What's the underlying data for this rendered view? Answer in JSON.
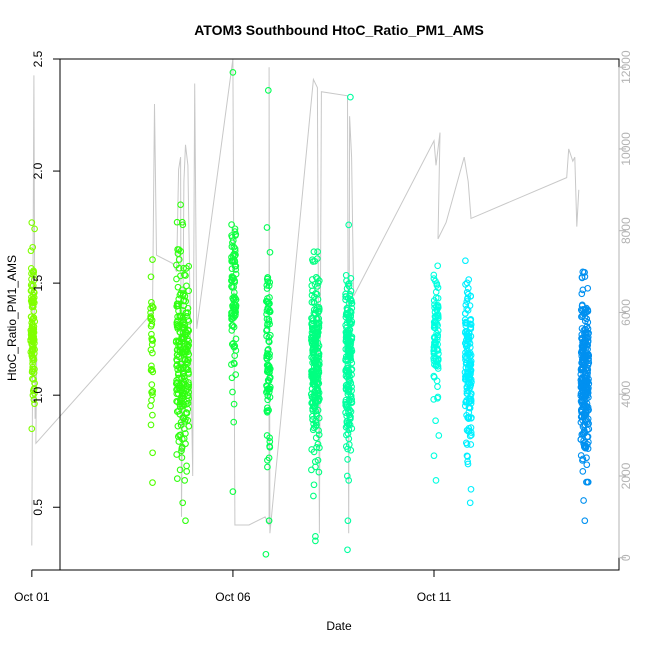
{
  "chart_data": {
    "type": "scatter",
    "title": "ATOM3 Southbound HtoC_Ratio_PM1_AMS",
    "xlabel": "Date",
    "ylabel": "HtoC_Ratio_PM1_AMS",
    "x_ticks": [
      "Oct 01",
      "Oct 06",
      "Oct 11"
    ],
    "y_ticks": [
      "0.5",
      "1.0",
      "1.5",
      "2.0",
      "2.5"
    ],
    "y2_ticks": [
      "0",
      "2000",
      "4000",
      "6000",
      "8000",
      "10000",
      "12000"
    ],
    "xlim_days": [
      0.7,
      14.6
    ],
    "ylim": [
      0.22,
      2.5
    ],
    "y2lim": [
      -300,
      12200
    ],
    "x_origin_label": "Oct 01",
    "clusters": [
      {
        "day": 0.02,
        "color": "#80ff00",
        "mean": 1.3,
        "sd": 0.17,
        "n": 110,
        "width": 0.05,
        "outliers": [
          [
            0.0,
            1.77
          ],
          [
            0.0,
            0.85
          ],
          [
            0.05,
            0.98
          ],
          [
            0.02,
            1.66
          ]
        ]
      },
      {
        "day": 2.98,
        "color": "#50ff00",
        "mean": 1.18,
        "sd": 0.18,
        "n": 35,
        "width": 0.03,
        "outliers": [
          [
            3.0,
            0.61
          ],
          [
            3.02,
            1.39
          ]
        ]
      },
      {
        "day": 3.75,
        "color": "#30ff10",
        "mean": 1.2,
        "sd": 0.22,
        "n": 230,
        "width": 0.16,
        "outliers": [
          [
            3.7,
            1.85
          ],
          [
            3.82,
            0.44
          ],
          [
            3.75,
            0.52
          ],
          [
            3.8,
            0.62
          ],
          [
            3.85,
            0.66
          ]
        ]
      },
      {
        "day": 5.02,
        "color": "#10ff40",
        "mean": 1.43,
        "sd": 0.16,
        "n": 90,
        "width": 0.06,
        "outliers": [
          [
            5.0,
            2.44
          ],
          [
            5.05,
            1.73
          ],
          [
            5.0,
            0.57
          ],
          [
            5.02,
            0.88
          ],
          [
            5.03,
            0.96
          ]
        ]
      },
      {
        "day": 5.88,
        "color": "#00ff55",
        "mean": 1.15,
        "sd": 0.23,
        "n": 90,
        "width": 0.05,
        "outliers": [
          [
            5.88,
            2.36
          ],
          [
            5.82,
            0.29
          ],
          [
            5.9,
            0.44
          ],
          [
            5.85,
            0.82
          ],
          [
            5.9,
            0.72
          ]
        ]
      },
      {
        "day": 7.05,
        "color": "#00ff80",
        "mean": 1.12,
        "sd": 0.2,
        "n": 240,
        "width": 0.1,
        "outliers": [
          [
            7.05,
            0.37
          ],
          [
            7.05,
            0.35
          ],
          [
            7.0,
            0.55
          ],
          [
            7.1,
            1.52
          ],
          [
            7.05,
            0.68
          ]
        ]
      },
      {
        "day": 7.88,
        "color": "#00ffa0",
        "mean": 1.16,
        "sd": 0.21,
        "n": 190,
        "width": 0.08,
        "outliers": [
          [
            7.92,
            2.33
          ],
          [
            7.88,
            1.76
          ],
          [
            7.85,
            0.31
          ],
          [
            7.86,
            0.44
          ],
          [
            7.88,
            0.62
          ]
        ]
      },
      {
        "day": 10.05,
        "color": "#00ffe0",
        "mean": 1.25,
        "sd": 0.14,
        "n": 90,
        "width": 0.06,
        "outliers": [
          [
            10.1,
            1.48
          ],
          [
            10.05,
            0.62
          ],
          [
            10.12,
            0.82
          ],
          [
            10.0,
            0.73
          ]
        ]
      },
      {
        "day": 10.85,
        "color": "#00f0ff",
        "mean": 1.13,
        "sd": 0.18,
        "n": 160,
        "width": 0.08,
        "outliers": [
          [
            10.78,
            1.6
          ],
          [
            10.9,
            0.52
          ],
          [
            10.92,
            0.58
          ],
          [
            10.85,
            1.45
          ]
        ]
      },
      {
        "day": 13.75,
        "color": "#0090f0",
        "mean": 1.08,
        "sd": 0.18,
        "n": 260,
        "width": 0.1,
        "outliers": [
          [
            13.7,
            1.55
          ],
          [
            13.75,
            0.44
          ],
          [
            13.72,
            0.53
          ],
          [
            13.7,
            0.66
          ],
          [
            13.8,
            0.69
          ]
        ]
      }
    ],
    "altitude_track": [
      [
        0.0,
        300
      ],
      [
        0.05,
        11800
      ],
      [
        0.08,
        3400
      ],
      [
        0.12,
        5000
      ],
      [
        0.1,
        2900
      ],
      [
        0.1,
        2800
      ],
      [
        3.0,
        6000
      ],
      [
        3.05,
        11100
      ],
      [
        3.1,
        7400
      ],
      [
        3.5,
        7200
      ],
      [
        3.6,
        7000
      ],
      [
        3.65,
        9500
      ],
      [
        3.7,
        9800
      ],
      [
        3.72,
        1000
      ],
      [
        3.78,
        9200
      ],
      [
        3.82,
        10100
      ],
      [
        3.88,
        9600
      ],
      [
        4.0,
        2000
      ],
      [
        4.05,
        11600
      ],
      [
        4.1,
        5600
      ],
      [
        5.0,
        12200
      ],
      [
        5.05,
        800
      ],
      [
        5.4,
        800
      ],
      [
        5.8,
        1000
      ],
      [
        5.9,
        800
      ],
      [
        5.9,
        12000
      ],
      [
        5.92,
        600
      ],
      [
        7.0,
        11700
      ],
      [
        7.1,
        11500
      ],
      [
        7.15,
        600
      ],
      [
        7.2,
        11400
      ],
      [
        7.85,
        11300
      ],
      [
        7.88,
        600
      ],
      [
        7.9,
        10800
      ],
      [
        7.95,
        9800
      ],
      [
        8.0,
        6400
      ],
      [
        10.0,
        10200
      ],
      [
        10.05,
        9600
      ],
      [
        10.15,
        10400
      ],
      [
        10.1,
        7800
      ],
      [
        10.3,
        8200
      ],
      [
        10.75,
        9800
      ],
      [
        10.85,
        9200
      ],
      [
        10.92,
        8300
      ],
      [
        13.3,
        9300
      ],
      [
        13.35,
        10000
      ],
      [
        13.45,
        9700
      ],
      [
        13.5,
        9800
      ],
      [
        13.55,
        8100
      ],
      [
        13.6,
        9000
      ]
    ],
    "grid": false,
    "legend": "none"
  }
}
